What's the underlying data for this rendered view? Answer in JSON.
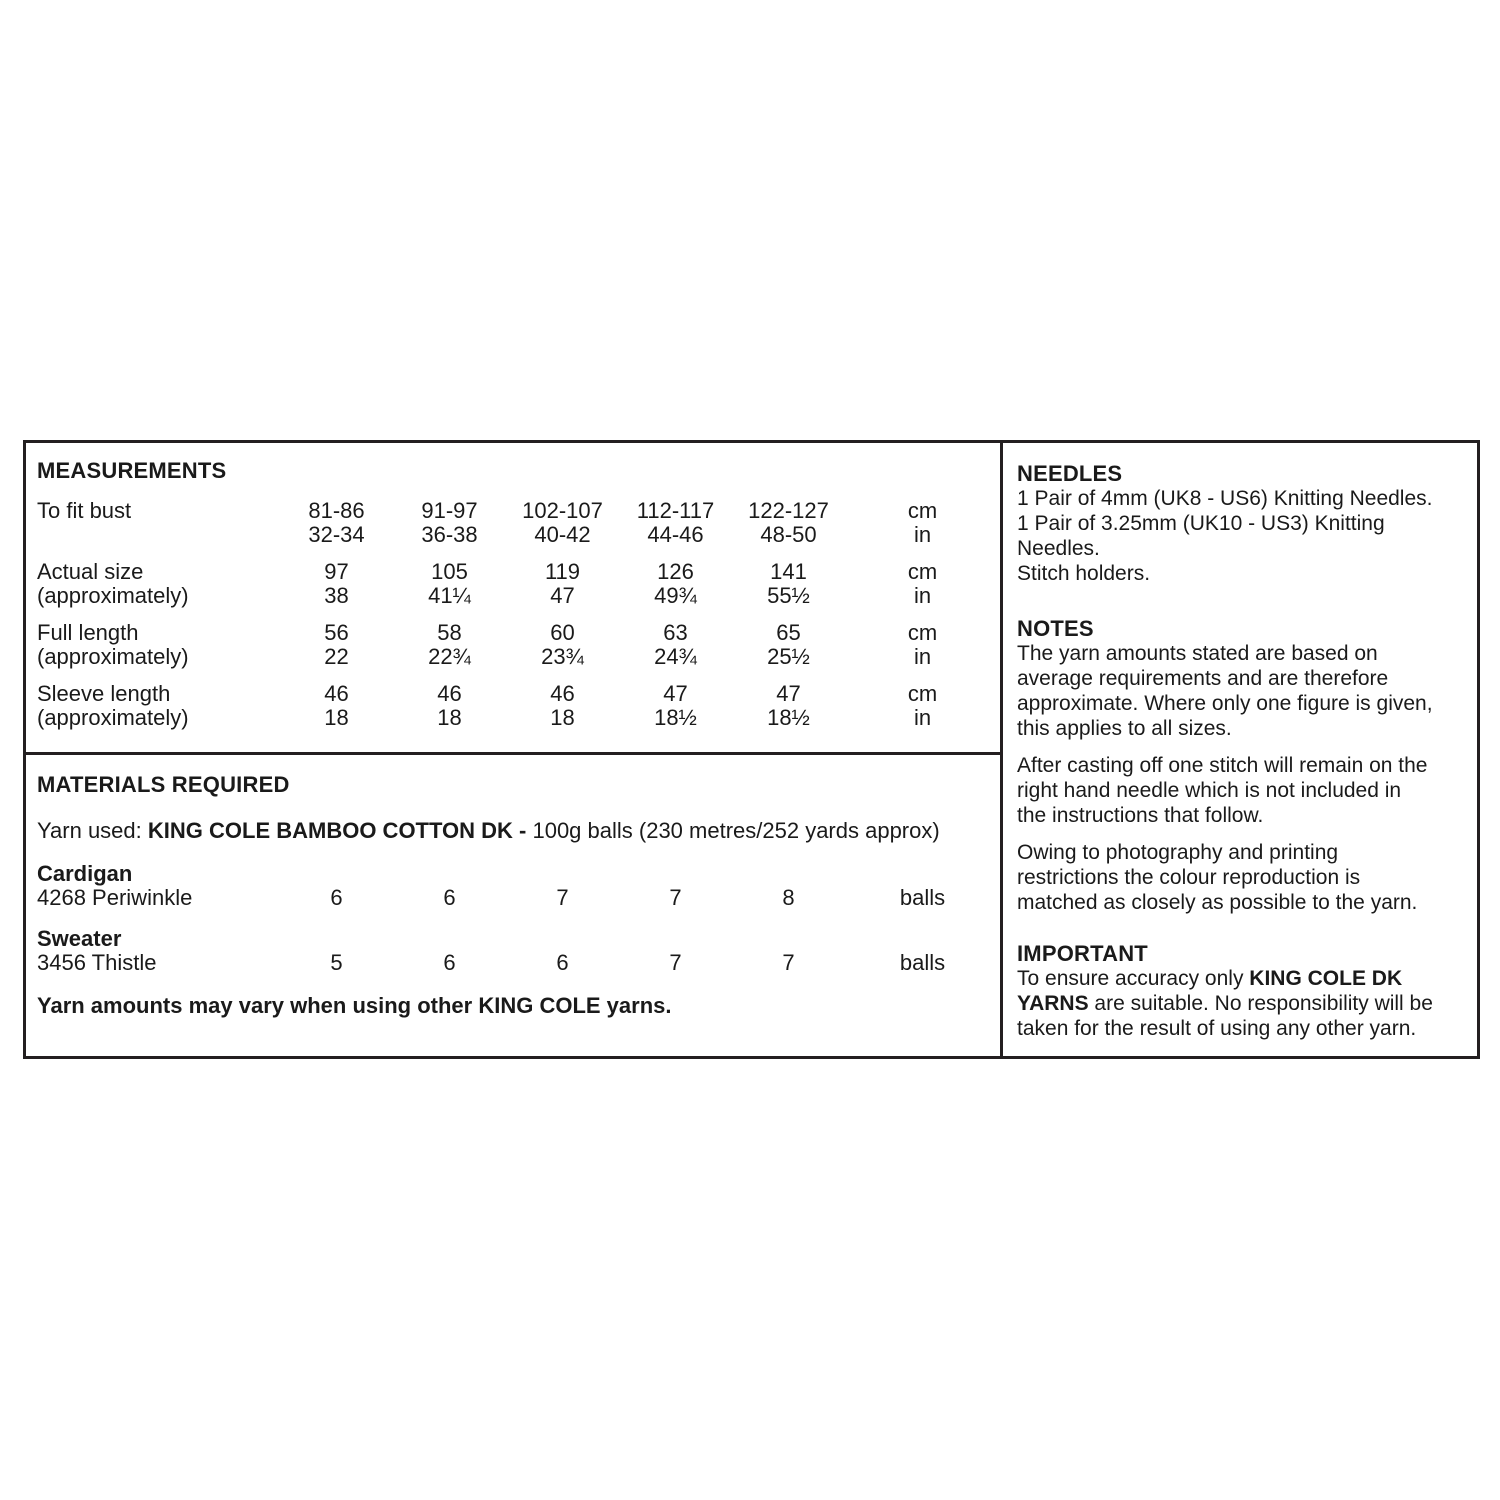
{
  "colors": {
    "text": "#1a1a1a",
    "border": "#231f20",
    "background": "#ffffff"
  },
  "measurements": {
    "title": "MEASUREMENTS",
    "unit_cm": "cm",
    "unit_in": "in",
    "rows": [
      {
        "label": "To fit bust",
        "sublabel": "",
        "cm": [
          "81-86",
          "91-97",
          "102-107",
          "112-117",
          "122-127"
        ],
        "in": [
          "32-34",
          "36-38",
          "40-42",
          "44-46",
          "48-50"
        ]
      },
      {
        "label": "Actual size",
        "sublabel": "(approximately)",
        "cm": [
          "97",
          "105",
          "119",
          "126",
          "141"
        ],
        "in": [
          "38",
          "41¼",
          "47",
          "49¾",
          "55½"
        ]
      },
      {
        "label": "Full length",
        "sublabel": "(approximately)",
        "cm": [
          "56",
          "58",
          "60",
          "63",
          "65"
        ],
        "in": [
          "22",
          "22¾",
          "23¾",
          "24¾",
          "25½"
        ]
      },
      {
        "label": "Sleeve length",
        "sublabel": "(approximately)",
        "cm": [
          "46",
          "46",
          "46",
          "47",
          "47"
        ],
        "in": [
          "18",
          "18",
          "18",
          "18½",
          "18½"
        ]
      }
    ]
  },
  "materials": {
    "title": "MATERIALS REQUIRED",
    "yarn_line": {
      "prefix": "Yarn used: ",
      "brand": "KING COLE BAMBOO COTTON DK -",
      "suffix": " 100g balls (230 metres/252 yards approx)"
    },
    "items": [
      {
        "name": "Cardigan",
        "shade": "4268 Periwinkle",
        "quantities": [
          "6",
          "6",
          "7",
          "7",
          "8"
        ],
        "unit": "balls"
      },
      {
        "name": "Sweater",
        "shade": "3456 Thistle",
        "quantities": [
          "5",
          "6",
          "6",
          "7",
          "7"
        ],
        "unit": "balls"
      }
    ],
    "note": "Yarn amounts may vary when using other KING COLE yarns."
  },
  "needles": {
    "title": "NEEDLES",
    "lines": [
      "1 Pair of 4mm (UK8 - US6) Knitting Needles.",
      "1 Pair of 3.25mm (UK10 - US3) Knitting",
      "Needles.",
      "Stitch holders."
    ]
  },
  "notes": {
    "title": "NOTES",
    "paragraphs": [
      {
        "lines": [
          "The yarn amounts stated are based on",
          "average requirements and are therefore",
          "approximate. Where only one figure is given,",
          "this applies to all sizes."
        ]
      },
      {
        "lines": [
          "After casting off one stitch will remain on the",
          "right hand needle which is not included in",
          "the instructions that follow."
        ]
      },
      {
        "lines": [
          "Owing to photography and printing",
          "restrictions the colour reproduction is",
          "matched as closely as possible to the yarn."
        ]
      }
    ]
  },
  "important": {
    "title": "IMPORTANT",
    "line1_regular": "To ensure accuracy only ",
    "line1_bold": "KING COLE DK",
    "line2_bold": "YARNS",
    "line2_regular": " are suitable. No responsibility will be",
    "line3": "taken for the result of using any other yarn."
  }
}
